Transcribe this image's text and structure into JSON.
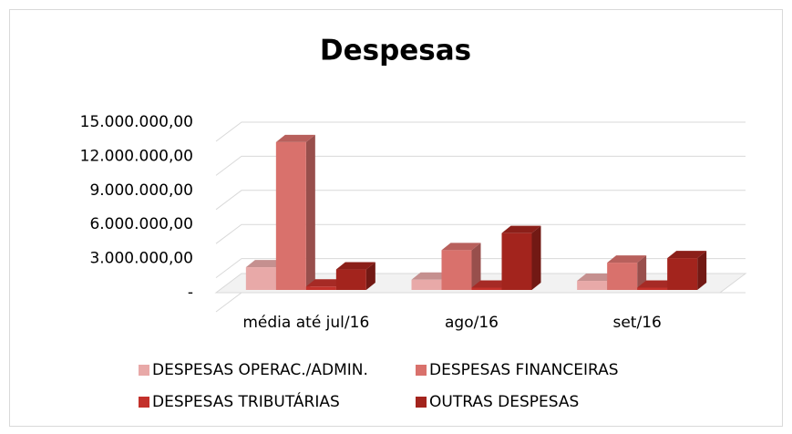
{
  "chart_data": {
    "type": "bar3d",
    "title": "Despesas",
    "categories": [
      "média até jul/16",
      "ago/16",
      "set/16"
    ],
    "series": [
      {
        "name": "DESPESAS OPERAC./ADMIN.",
        "color": "#e8a9a8",
        "values": [
          2000000,
          900000,
          800000
        ]
      },
      {
        "name": "DESPESAS FINANCEIRAS",
        "color": "#d9716c",
        "values": [
          13000000,
          3500000,
          2400000
        ]
      },
      {
        "name": "DESPESAS TRIBUTÁRIAS",
        "color": "#c3312b",
        "values": [
          300000,
          200000,
          200000
        ]
      },
      {
        "name": "OUTRAS DESPESAS",
        "color": "#a3241d",
        "values": [
          1800000,
          5000000,
          2800000
        ]
      }
    ],
    "ylim": [
      0,
      15000000
    ],
    "yticks": [
      {
        "value": 0,
        "label": "-"
      },
      {
        "value": 3000000,
        "label": "3.000.000,00"
      },
      {
        "value": 6000000,
        "label": "6.000.000,00"
      },
      {
        "value": 9000000,
        "label": "9.000.000,00"
      },
      {
        "value": 12000000,
        "label": "12.000.000,00"
      },
      {
        "value": 15000000,
        "label": "15.000.000,00"
      }
    ],
    "grid": true,
    "legend": "bottom"
  }
}
